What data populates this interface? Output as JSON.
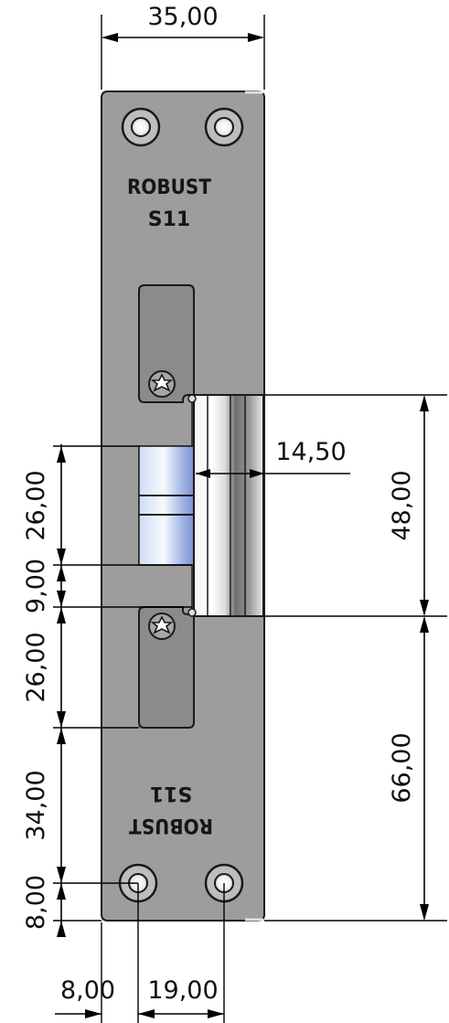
{
  "brand": {
    "name": "ROBUST",
    "model": "S11"
  },
  "dimensions": {
    "width_top": "35,00",
    "keeper_depth": "14,50",
    "keeper_height": "48,00",
    "lower_section": "66,00",
    "left_1": "26,00",
    "left_2": "9,00",
    "left_3": "26,00",
    "left_4": "34,00",
    "left_5": "8,00",
    "bottom_left": "8,00",
    "bottom_spacing": "19,00"
  },
  "colors": {
    "plate": "#9d9d9d",
    "plate_edge": "#1a1a1a",
    "slot": "#8b8b8b",
    "bolt_blue": "#8fa3d8",
    "bolt_white": "#f4f6fa",
    "keeper_dark": "#6f6f6f"
  }
}
